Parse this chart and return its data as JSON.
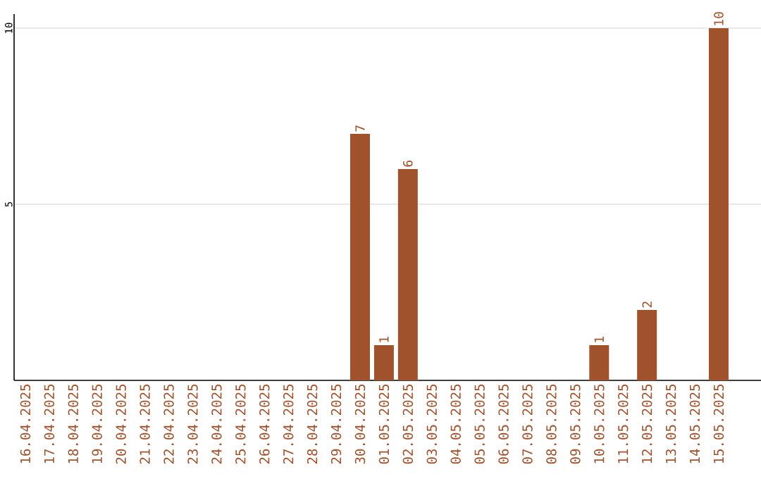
{
  "chart_data": {
    "type": "bar",
    "categories": [
      "16.04.2025",
      "17.04.2025",
      "18.04.2025",
      "19.04.2025",
      "20.04.2025",
      "21.04.2025",
      "22.04.2025",
      "23.04.2025",
      "24.04.2025",
      "25.04.2025",
      "26.04.2025",
      "27.04.2025",
      "28.04.2025",
      "29.04.2025",
      "30.04.2025",
      "01.05.2025",
      "02.05.2025",
      "03.05.2025",
      "04.05.2025",
      "05.05.2025",
      "06.05.2025",
      "07.05.2025",
      "08.05.2025",
      "09.05.2025",
      "10.05.2025",
      "11.05.2025",
      "12.05.2025",
      "13.05.2025",
      "14.05.2025",
      "15.05.2025"
    ],
    "values": [
      0,
      0,
      0,
      0,
      0,
      0,
      0,
      0,
      0,
      0,
      0,
      0,
      0,
      0,
      7,
      1,
      6,
      0,
      0,
      0,
      0,
      0,
      0,
      0,
      1,
      0,
      2,
      0,
      0,
      10
    ],
    "value_labels": [
      null,
      null,
      null,
      null,
      null,
      null,
      null,
      null,
      null,
      null,
      null,
      null,
      null,
      null,
      "7",
      "1",
      "6",
      null,
      null,
      null,
      null,
      null,
      null,
      null,
      "1",
      null,
      "2",
      null,
      null,
      "10"
    ],
    "color": "#a0522d",
    "ylim": [
      0,
      10.4
    ],
    "yticks": [
      5,
      10
    ],
    "grid": "y"
  }
}
